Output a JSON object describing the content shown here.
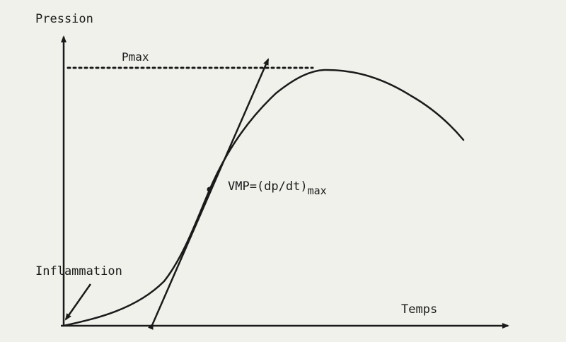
{
  "diagram": {
    "y_axis_label": "Pression",
    "x_axis_label": "Temps",
    "pmax_label": "Pmax",
    "vmp_main": "VMP=(dp/dt)",
    "vmp_sub": "max",
    "inflammation_label": "Inflammation"
  },
  "colors": {
    "background": "#f1f1ec",
    "ink": "#1a1a1a"
  }
}
